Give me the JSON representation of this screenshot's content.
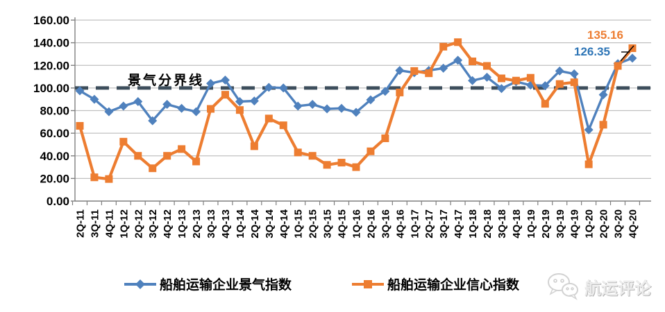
{
  "chart_data": {
    "type": "line",
    "categories": [
      "2Q-11",
      "3Q-11",
      "4Q-11",
      "1Q-12",
      "2Q-12",
      "3Q-12",
      "4Q-12",
      "1Q-13",
      "2Q-13",
      "3Q-13",
      "4Q-13",
      "1Q-14",
      "2Q-14",
      "3Q-14",
      "4Q-14",
      "1Q-15",
      "2Q-15",
      "3Q-15",
      "4Q-15",
      "1Q-16",
      "2Q-16",
      "3Q-16",
      "4Q-16",
      "1Q-17",
      "2Q-17",
      "3Q-17",
      "4Q-17",
      "1Q-18",
      "2Q-18",
      "3Q-18",
      "4Q-18",
      "1Q-19",
      "2Q-19",
      "3Q-19",
      "4Q-19",
      "1Q-20",
      "2Q-20",
      "3Q-20",
      "4Q-20"
    ],
    "series": [
      {
        "name": "船舶运输企业景气指数",
        "marker": "diamond",
        "color": "#4F81BD",
        "values": [
          97.5,
          90,
          79,
          84,
          88,
          71,
          85.5,
          82,
          79,
          104,
          107,
          88,
          88.5,
          100.5,
          100,
          84,
          85.5,
          81.5,
          82,
          78.5,
          89.5,
          97,
          115.5,
          113.5,
          115.5,
          117.5,
          124.5,
          106.5,
          109.5,
          99.5,
          105.5,
          102.5,
          102,
          115,
          112.5,
          63,
          94,
          121.5,
          126.35
        ]
      },
      {
        "name": "船舶运输企业信心指数",
        "marker": "square",
        "color": "#ED7D31",
        "values": [
          66.5,
          21,
          19.5,
          52.5,
          40,
          29,
          40,
          46,
          35,
          81.5,
          94,
          80.5,
          48.5,
          73,
          67,
          43,
          40,
          32,
          34,
          30,
          44,
          55.5,
          96,
          115,
          113,
          136.5,
          140.5,
          123.5,
          119.5,
          108.5,
          106.5,
          109,
          86,
          103.5,
          105,
          32.5,
          67.5,
          119.5,
          135.16
        ]
      }
    ],
    "ylim": [
      0,
      160
    ],
    "y_tick_step": 20,
    "y_tick_labels": [
      "0.00",
      "20.00",
      "40.00",
      "60.00",
      "80.00",
      "100.00",
      "120.00",
      "140.00",
      "160.00"
    ],
    "reference_line": {
      "value": 100,
      "label": "景气分界线",
      "style": "dashed",
      "color": "#3D4E5C"
    },
    "grid": true,
    "legend_position": "bottom"
  },
  "annotations": {
    "boundary_label": "景气分界线",
    "confidence_end_label": "135.16",
    "prosperity_end_label": "126.35"
  },
  "legend": {
    "prosperity": "船舶运输企业景气指数",
    "confidence": "船舶运输企业信心指数"
  },
  "watermark": {
    "text": "航运评论"
  },
  "colors": {
    "prosperity_blue": "#4F81BD",
    "confidence_orange": "#ED7D31",
    "prosperity_label_blue": "#2E75B6",
    "boundary_dark": "#3D4E5C",
    "gridline_gray": "#C0C0C0",
    "axis_gray": "#7F7F7F"
  }
}
